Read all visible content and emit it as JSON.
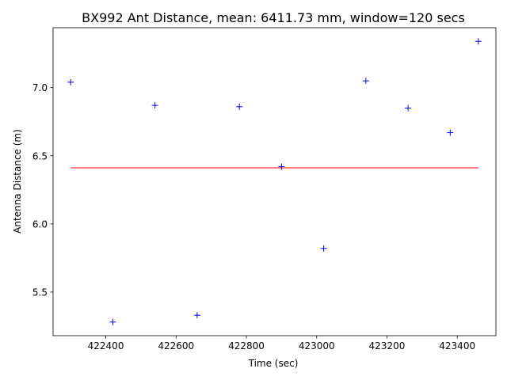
{
  "chart_data": {
    "type": "scatter",
    "title": "BX992 Ant Distance, mean: 6411.73 mm, window=120 secs",
    "xlabel": "Time (sec)",
    "ylabel": "Antenna Distance (m)",
    "xlim": [
      422250,
      423510
    ],
    "ylim": [
      5.18,
      7.44
    ],
    "xticks": [
      422400,
      422600,
      422800,
      423000,
      423200,
      423400
    ],
    "xtick_labels": [
      "422400",
      "422600",
      "422800",
      "423000",
      "423200",
      "423400"
    ],
    "yticks": [
      5.5,
      6.0,
      6.5,
      7.0
    ],
    "ytick_labels": [
      "5.5",
      "6.0",
      "6.5",
      "7.0"
    ],
    "grid": false,
    "series": [
      {
        "marker": "+",
        "color": "#0000ff",
        "x": [
          422300,
          422420,
          422540,
          422660,
          422780,
          422900,
          423020,
          423140,
          423260,
          423380,
          423460
        ],
        "y": [
          7.04,
          5.28,
          6.87,
          5.33,
          6.86,
          6.42,
          5.82,
          7.05,
          6.85,
          6.67,
          7.34
        ]
      }
    ],
    "mean_line": {
      "color": "#ff0000",
      "y": 6.41173,
      "x_start": 422300,
      "x_end": 423460
    }
  }
}
